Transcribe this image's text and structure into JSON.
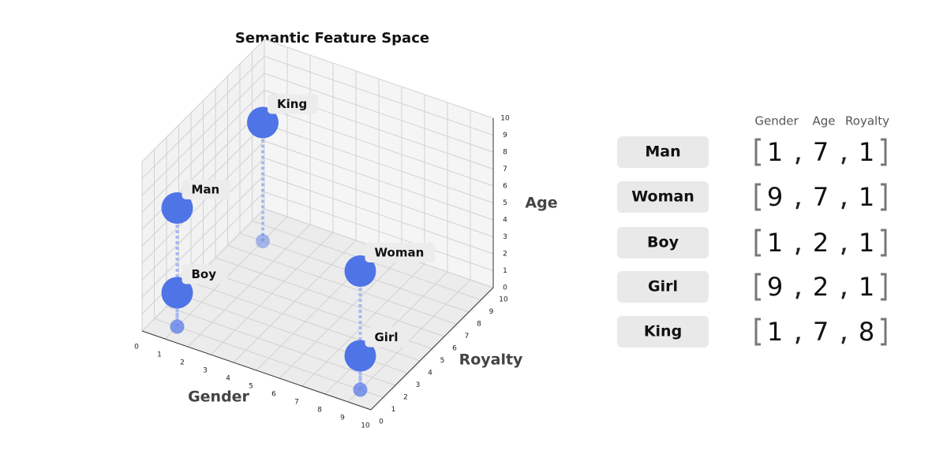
{
  "chart_data": {
    "type": "scatter3d",
    "title": "Semantic Feature Space",
    "x_label": "Gender",
    "y_label": "Royalty",
    "z_label": "Age",
    "labels": [
      "Man",
      "Woman",
      "Boy",
      "Girl",
      "King"
    ],
    "x": [
      1,
      9,
      1,
      9,
      1
    ],
    "y": [
      1,
      1,
      1,
      1,
      8
    ],
    "z": [
      7,
      7,
      2,
      2,
      7
    ],
    "color": "#4f74e6",
    "xlim": [
      0,
      10
    ],
    "ylim": [
      0,
      10
    ],
    "zlim": [
      0,
      10
    ],
    "xticks": [
      0,
      1,
      2,
      3,
      4,
      5,
      6,
      7,
      8,
      9,
      10
    ],
    "yticks": [
      0,
      1,
      2,
      3,
      4,
      5,
      6,
      7,
      8,
      9,
      10
    ],
    "zticks": [
      0,
      1,
      2,
      3,
      4,
      5,
      6,
      7,
      8,
      9,
      10
    ],
    "grid": true
  }
}
